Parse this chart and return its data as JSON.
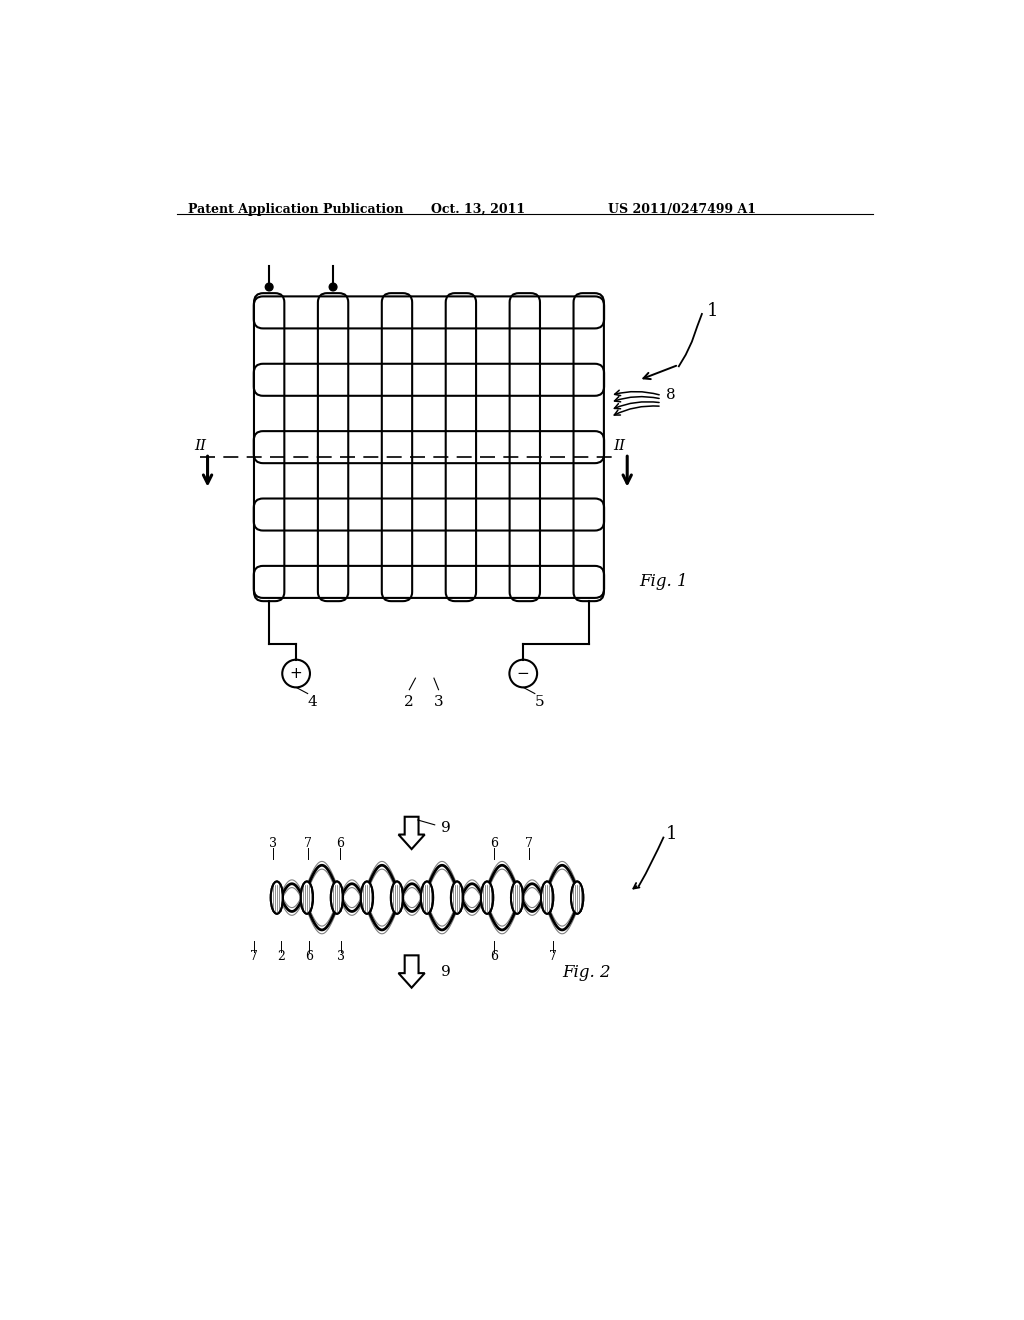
{
  "bg_color": "#ffffff",
  "text_color": "#000000",
  "header_left": "Patent Application Publication",
  "header_mid": "Oct. 13, 2011",
  "header_right": "US 2011/0247499 A1",
  "fig1_label": "Fig. 1",
  "fig2_label": "Fig. 2",
  "line_color": "#000000",
  "line_width": 1.5,
  "font_size_header": 9,
  "font_size_label": 11
}
